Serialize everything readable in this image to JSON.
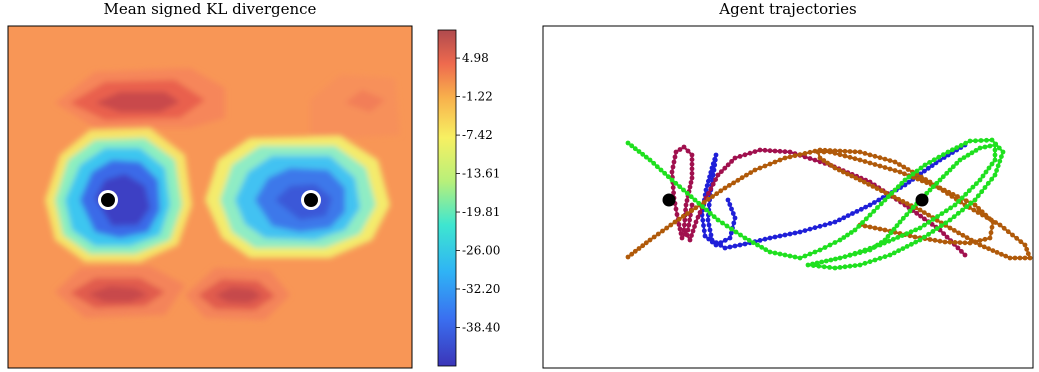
{
  "chart_data": [
    {
      "type": "heatmap",
      "title": "Mean signed KL divergence",
      "colorbar": {
        "ticks": [
          "4.98",
          "-1.22",
          "-7.42",
          "-13.61",
          "-19.81",
          "-26.00",
          "-32.20",
          "-38.40"
        ],
        "tick_values": [
          4.98,
          -1.22,
          -7.42,
          -13.61,
          -19.81,
          -26.0,
          -32.2,
          -38.4
        ],
        "range": [
          -44.6,
          9.5
        ],
        "colormap": "jet"
      },
      "background_value": 0.5,
      "features": [
        {
          "kind": "low",
          "value": -44.0,
          "label": "left basin"
        },
        {
          "kind": "low",
          "value": -38.0,
          "label": "right basin"
        },
        {
          "kind": "high",
          "value": 8.0,
          "label": "top ridge"
        },
        {
          "kind": "high",
          "value": 7.5,
          "label": "bottom-left ridge"
        },
        {
          "kind": "high",
          "value": 8.0,
          "label": "bottom-right ridge"
        }
      ],
      "markers": [
        "left agent",
        "right agent"
      ],
      "grid": false
    },
    {
      "type": "line",
      "title": "Agent trajectories",
      "series": [
        {
          "color": "#1f1fd8"
        },
        {
          "color": "#a0104e"
        },
        {
          "color": "#b05a0a"
        },
        {
          "color": "#1fe01f"
        }
      ],
      "markers": [
        "left agent",
        "right agent"
      ],
      "grid": false
    }
  ]
}
